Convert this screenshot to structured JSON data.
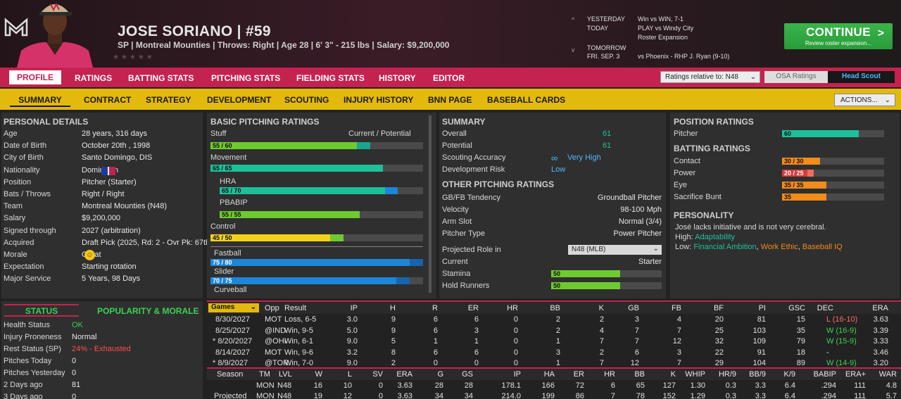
{
  "player": {
    "name": "JOSE SORIANO",
    "sep": "|",
    "number": "#59",
    "subline": "SP | Montreal Mounties  |  Throws: Right  |  Age 28  |  6' 3\" - 215 lbs  |  Salary: $9,200,000",
    "stars": "★★★★★"
  },
  "schedule": {
    "up": "^",
    "down": "v",
    "rows": [
      {
        "d": "YESTERDAY",
        "e": "Win vs WIN, 7-1"
      },
      {
        "d": "TODAY",
        "e": "PLAY vs Windy City"
      },
      {
        "d": "",
        "e": "Roster Expansion"
      },
      {
        "d": "TOMORROW",
        "e": ""
      },
      {
        "d": "FRI. SEP. 3",
        "e": "vs Phoenix - RHP J. Ryan (9-10)"
      }
    ]
  },
  "continue": {
    "label": "CONTINUE",
    "sub": "Review roster expansion...",
    "arrow": ">"
  },
  "main_tabs": [
    "PROFILE",
    "RATINGS",
    "BATTING STATS",
    "PITCHING STATS",
    "FIELDING STATS",
    "HISTORY",
    "EDITOR"
  ],
  "ratings_relative": "Ratings relative to: N48",
  "osa": "OSA Ratings",
  "head_scout": "Head Scout",
  "sub_tabs": [
    "SUMMARY",
    "CONTRACT",
    "STRATEGY",
    "DEVELOPMENT",
    "SCOUTING",
    "INJURY HISTORY",
    "BNN PAGE",
    "BASEBALL CARDS"
  ],
  "actions": "ACTIONS...",
  "personal": {
    "title": "PERSONAL DETAILS",
    "rows": [
      {
        "k": "Age",
        "v": "28 years, 316 days"
      },
      {
        "k": "Date of Birth",
        "v": "October 20th , 1998"
      },
      {
        "k": "City of Birth",
        "v": "Santo Domingo, DIS"
      },
      {
        "k": "Nationality",
        "v": "Dominican"
      },
      {
        "k": "Position",
        "v": "Pitcher (Starter)"
      },
      {
        "k": "Bats / Throws",
        "v": "Right / Right"
      },
      {
        "k": "Team",
        "v": "Montreal Mounties (N48)"
      },
      {
        "k": "Salary",
        "v": "$9,200,000"
      },
      {
        "k": "Signed through",
        "v": "2027 (arbitration)"
      },
      {
        "k": "Acquired",
        "v": "Draft Pick (2025, Rd: 2 - Ovr Pk: 67th)"
      },
      {
        "k": "Morale",
        "v": "Great"
      },
      {
        "k": "Expectation",
        "v": "Starting rotation"
      },
      {
        "k": "Major Service",
        "v": "5 Years, 98 Days"
      }
    ]
  },
  "status": {
    "tab1": "STATUS",
    "tab2": "POPULARITY & MORALE",
    "rows": [
      {
        "k": "Health Status",
        "v": "OK",
        "c": "#39d353"
      },
      {
        "k": "Injury Proneness",
        "v": "Normal",
        "c": "#e8e8e8"
      },
      {
        "k": "Rest Status (SP)",
        "v": "24% - Exhausted",
        "c": "#ff4d4d"
      },
      {
        "k": "Pitches Today",
        "v": "0",
        "c": "#e8e8e8"
      },
      {
        "k": "Pitches Yesterday",
        "v": "0",
        "c": "#e8e8e8"
      },
      {
        "k": "2 Days ago",
        "v": "81",
        "c": "#e8e8e8"
      },
      {
        "k": "3 Days ago",
        "v": "0",
        "c": "#e8e8e8"
      }
    ]
  },
  "basic_pitching": {
    "title": "BASIC PITCHING RATINGS",
    "cp": "Current / Potential",
    "ratings": [
      {
        "name": "Stuff",
        "label": "55 / 60",
        "cur": 55,
        "pot": 60,
        "c": "#6ecb2f",
        "c2": "#1aa58c"
      },
      {
        "name": "Movement",
        "label": "65 / 65",
        "cur": 65,
        "pot": 65,
        "c": "#1cc19a",
        "c2": "#1cc19a"
      },
      {
        "name": "HRA",
        "label": "65 / 70",
        "cur": 65,
        "pot": 70,
        "c": "#1cc19a",
        "c2": "#1c86d9"
      },
      {
        "name": "PBABIP",
        "label": "55 / 55",
        "cur": 55,
        "pot": 55,
        "c": "#6ecb2f",
        "c2": "#6ecb2f"
      },
      {
        "name": "Control",
        "label": "45 / 50",
        "cur": 45,
        "pot": 50,
        "c": "#f2d11a",
        "c2": "#6ecb2f"
      }
    ],
    "pitches": [
      {
        "name": "Fastball",
        "label": "75 / 80",
        "cur": 75,
        "pot": 80,
        "c": "#1c86d9",
        "c2": "#1565b0"
      },
      {
        "name": "Slider",
        "label": "70 / 75",
        "cur": 70,
        "pot": 75,
        "c": "#1c86d9",
        "c2": "#1565b0"
      },
      {
        "name": "Curveball",
        "label": "",
        "cur": 0,
        "pot": 0,
        "c": "#1c86d9",
        "c2": "#1565b0"
      }
    ]
  },
  "summary": {
    "title": "SUMMARY",
    "rows": [
      {
        "k": "Overall",
        "v": "61"
      },
      {
        "k": "Potential",
        "v": "61"
      },
      {
        "k": "Scouting Accuracy",
        "v": "Very High"
      },
      {
        "k": "Development Risk",
        "v": "Low"
      }
    ],
    "other_title": "OTHER PITCHING RATINGS",
    "other": [
      {
        "k": "GB/FB Tendency",
        "v": "Groundball Pitcher"
      },
      {
        "k": "Velocity",
        "v": "98-100 Mph"
      },
      {
        "k": "Arm Slot",
        "v": "Normal (3/4)"
      },
      {
        "k": "Pitcher Type",
        "v": "Power Pitcher"
      }
    ],
    "projected_label": "Projected Role in",
    "projected_value": "N48 (MLB)",
    "current_label": "Current",
    "current_value": "Starter",
    "stamina": {
      "label": "Stamina",
      "value": 50
    },
    "hold": {
      "label": "Hold Runners",
      "value": 50
    }
  },
  "position": {
    "title": "POSITION RATINGS",
    "pitcher": {
      "label": "Pitcher",
      "value": 60,
      "txt": "60"
    },
    "batting_title": "BATTING RATINGS",
    "batting": [
      {
        "k": "Contact",
        "txt": "30 / 30",
        "cur": 30,
        "pot": 30,
        "c": "#f28c1a",
        "c2": "#f28c1a"
      },
      {
        "k": "Power",
        "txt": "20 / 25",
        "cur": 20,
        "pot": 25,
        "c": "#d93a3a",
        "c2": "#f26d5b"
      },
      {
        "k": "Eye",
        "txt": "35 / 35",
        "cur": 35,
        "pot": 35,
        "c": "#f28c1a",
        "c2": "#f28c1a"
      },
      {
        "k": "Sacrifice Bunt",
        "txt": "35",
        "cur": 35,
        "pot": 35,
        "c": "#f28c1a",
        "c2": "#f28c1a"
      }
    ],
    "personality_title": "PERSONALITY",
    "personality_text": "José lacks initiative and is not very cerebral.",
    "high_label": "High:",
    "high_value": "Adaptability",
    "low_label": "Low:",
    "low_1": "Financial Ambition",
    "comma1": ",",
    "low_2": "Work Ethic",
    "comma2": ",",
    "low_3": "Baseball IQ"
  },
  "games": {
    "dropdown": "Games",
    "headers": [
      "Opp",
      "Result",
      "IP",
      "H",
      "R",
      "ER",
      "HR",
      "BB",
      "K",
      "GB",
      "FB",
      "BF",
      "PI",
      "GSC",
      "DEC",
      "ERA"
    ],
    "rows": [
      {
        "date": "8/30/2027",
        "opp": "MOT",
        "res": "Loss, 6-5",
        "ip": "3.0",
        "h": "9",
        "r": "6",
        "er": "6",
        "hr": "0",
        "bb": "2",
        "k": "2",
        "gb": "3",
        "fb": "4",
        "bf": "20",
        "pi": "81",
        "gsc": "15",
        "dec": "L (16-10)",
        "era": "3.63"
      },
      {
        "date": "8/25/2027",
        "opp": "@IND",
        "res": "Win, 9-5",
        "ip": "5.0",
        "h": "9",
        "r": "6",
        "er": "3",
        "hr": "0",
        "bb": "2",
        "k": "4",
        "gb": "7",
        "fb": "7",
        "bf": "25",
        "pi": "103",
        "gsc": "35",
        "dec": "W (16-9)",
        "era": "3.39"
      },
      {
        "date": "* 8/20/2027",
        "opp": "@OHI",
        "res": "Win, 6-1",
        "ip": "9.0",
        "h": "5",
        "r": "1",
        "er": "1",
        "hr": "0",
        "bb": "1",
        "k": "7",
        "gb": "7",
        "fb": "12",
        "bf": "32",
        "pi": "109",
        "gsc": "79",
        "dec": "W (15-9)",
        "era": "3.33"
      },
      {
        "date": "8/14/2027",
        "opp": "MOT",
        "res": "Win, 9-6",
        "ip": "3.2",
        "h": "8",
        "r": "6",
        "er": "6",
        "hr": "0",
        "bb": "3",
        "k": "2",
        "gb": "6",
        "fb": "3",
        "bf": "22",
        "pi": "91",
        "gsc": "18",
        "dec": "-",
        "era": "3.46"
      },
      {
        "date": "* 8/9/2027",
        "opp": "@TOR",
        "res": "Win, 7-0",
        "ip": "9.0",
        "h": "2",
        "r": "0",
        "er": "0",
        "hr": "0",
        "bb": "1",
        "k": "7",
        "gb": "12",
        "fb": "7",
        "bf": "29",
        "pi": "104",
        "gsc": "89",
        "dec": "W (14-9)",
        "era": "3.20"
      }
    ]
  },
  "season": {
    "headers": [
      "Season",
      "TM",
      "LVL",
      "W",
      "L",
      "SV",
      "ERA",
      "G",
      "GS",
      "IP",
      "HA",
      "ER",
      "HR",
      "BB",
      "K",
      "WHIP",
      "HR/9",
      "BB/9",
      "K/9",
      "BABIP",
      "ERA+",
      "WAR"
    ],
    "rows": [
      [
        "",
        "MON",
        "N48",
        "16",
        "10",
        "0",
        "3.63",
        "28",
        "28",
        "178.1",
        "166",
        "72",
        "6",
        "65",
        "127",
        "1.30",
        "0.3",
        "3.3",
        "6.4",
        ".294",
        "111",
        "4.8"
      ],
      [
        "Projected",
        "MON",
        "N48",
        "19",
        "12",
        "0",
        "3.63",
        "34",
        "34",
        "214.0",
        "199",
        "86",
        "7",
        "78",
        "152",
        "1.29",
        "0.3",
        "3.3",
        "6.4",
        ".294",
        "111",
        "5.7"
      ]
    ]
  },
  "colors": {
    "accent": "#c4224f",
    "gold": "#e3b90d",
    "green": "#39b54a",
    "teal": "#1cc19a"
  }
}
